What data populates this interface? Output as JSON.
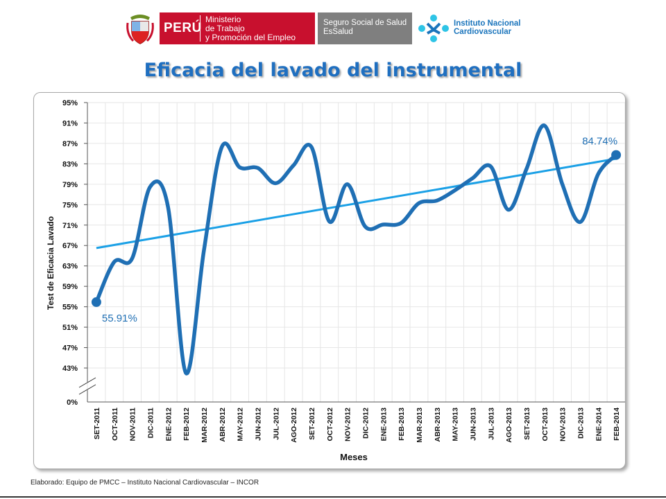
{
  "header": {
    "peru_label": "PERÚ",
    "ministry_lines": [
      "Ministerio",
      "de Trabajo",
      "y Promoción del Empleo"
    ],
    "essalud_lines": [
      "Seguro Social de Salud",
      "EsSalud"
    ],
    "incor_lines": [
      "Instituto Nacional",
      "Cardiovascular"
    ]
  },
  "title": "Eficacia del lavado del instrumental",
  "footer": "Elaborado: Equipo de PMCC – Instituto Nacional Cardiovascular – INCOR",
  "colors": {
    "series": "#1f6fb4",
    "trend": "#1aa0e6",
    "title": "#1f6fc0",
    "grid": "#e6e6e6"
  },
  "chart_data": {
    "type": "line",
    "xlabel": "Meses",
    "ylabel": "Test de Eficacia Lavado",
    "categories": [
      "SET-2011",
      "OCT-2011",
      "NOV-2011",
      "DIC-2011",
      "ENE-2012",
      "FEB-2012",
      "MAR-2012",
      "ABR-2012",
      "MAY-2012",
      "JUN-2012",
      "JUL-2012",
      "AGO-2012",
      "SET-2012",
      "OCT-2012",
      "NOV-2012",
      "DIC-2012",
      "ENE-2013",
      "FEB-2013",
      "MAR-2013",
      "ABR-2013",
      "MAY-2013",
      "JUN-2013",
      "JUL-2013",
      "AGO-2013",
      "SET-2013",
      "OCT-2013",
      "NOV-2013",
      "DIC-2013",
      "ENE-2014",
      "FEB-2014"
    ],
    "series": [
      {
        "values": [
          55.91,
          63.8,
          64.5,
          78.5,
          74.5,
          42.0,
          66.0,
          86.3,
          82.3,
          82.2,
          79.2,
          82.7,
          86.3,
          71.7,
          79.0,
          70.7,
          71.1,
          71.4,
          75.3,
          75.8,
          77.8,
          80.2,
          82.5,
          74.0,
          82.0,
          90.5,
          79.0,
          71.6,
          81.0,
          84.74
        ]
      }
    ],
    "trendline": {
      "start": 66.5,
      "end": 84.0
    },
    "data_labels": [
      {
        "index": 0,
        "text": "55.91%"
      },
      {
        "index": 29,
        "text": "84.74%"
      }
    ],
    "yticks": [
      "43%",
      "47%",
      "51%",
      "55%",
      "59%",
      "63%",
      "67%",
      "71%",
      "75%",
      "79%",
      "83%",
      "87%",
      "91%",
      "95%"
    ],
    "ybreak_label": "0%",
    "ylim": [
      43,
      95
    ],
    "grid": true
  }
}
